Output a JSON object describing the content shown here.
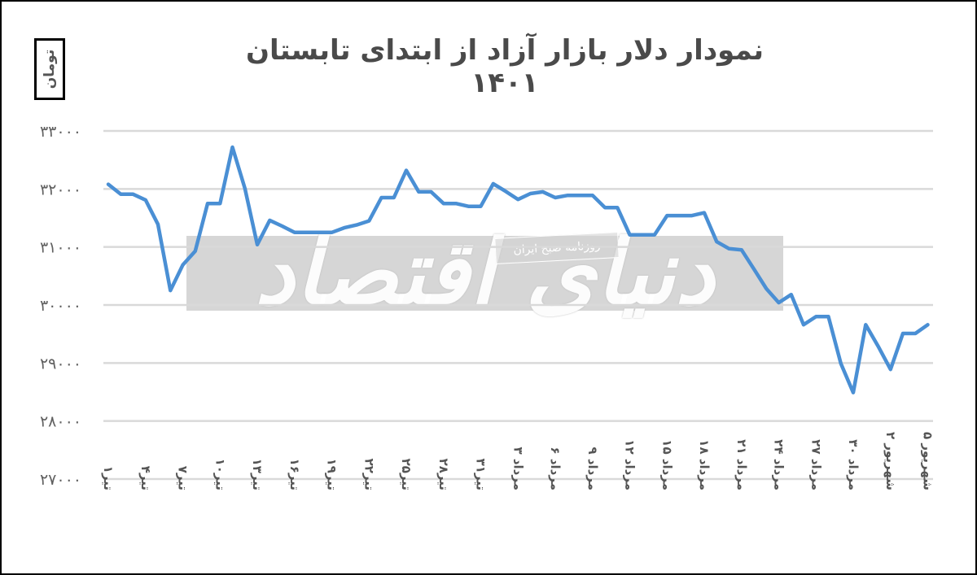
{
  "chart_data": {
    "type": "line",
    "title": "نمودار دلار بازار آزاد از ابتدای تابستان ۱۴۰۱",
    "ylabel": "تومان",
    "xlabel": "",
    "ylim": [
      27000,
      33000
    ],
    "yticks": [
      33000,
      32000,
      31000,
      30000,
      29000,
      28000,
      27000
    ],
    "ytick_labels": [
      "۳۳۰۰۰",
      "۳۲۰۰۰",
      "۳۱۰۰۰",
      "۳۰۰۰۰",
      "۲۹۰۰۰",
      "۲۸۰۰۰",
      "۲۷۰۰۰"
    ],
    "grid": true,
    "legend": null,
    "line_color": "#4a8fd4",
    "xtick_labels": [
      "تیر۱",
      "تیر۴",
      "تیر۷",
      "تیر۱۰",
      "تیر۱۳",
      "تیر۱۶",
      "تیر۱۹",
      "تیر۲۲",
      "تیر۲۵",
      "تیر۲۸",
      "تیر۳۱",
      "مرداد ۳",
      "مرداد ۶",
      "مرداد ۹",
      "مرداد ۱۲",
      "مرداد ۱۵",
      "مرداد ۱۸",
      "مرداد ۲۱",
      "مرداد ۲۴",
      "مرداد ۲۷",
      "مرداد ۳۰",
      "شهریور ۲",
      "شهریور ۵"
    ],
    "xtick_every": 3,
    "x": [
      "تیر ۱",
      "تیر ۲",
      "تیر ۳",
      "تیر ۴",
      "تیر ۵",
      "تیر ۶",
      "تیر ۷",
      "تیر ۸",
      "تیر ۹",
      "تیر ۱۰",
      "تیر ۱۱",
      "تیر ۱۲",
      "تیر ۱۳",
      "تیر ۱۴",
      "تیر ۱۵",
      "تیر ۱۶",
      "تیر ۱۷",
      "تیر ۱۸",
      "تیر ۱۹",
      "تیر ۲۰",
      "تیر ۲۱",
      "تیر ۲۲",
      "تیر ۲۳",
      "تیر ۲۴",
      "تیر ۲۵",
      "تیر ۲۶",
      "تیر ۲۷",
      "تیر ۲۸",
      "تیر ۲۹",
      "تیر ۳۰",
      "تیر ۳۱",
      "مرداد ۱",
      "مرداد ۲",
      "مرداد ۳",
      "مرداد ۴",
      "مرداد ۵",
      "مرداد ۶",
      "مرداد ۷",
      "مرداد ۸",
      "مرداد ۹",
      "مرداد ۱۰",
      "مرداد ۱۱",
      "مرداد ۱۲",
      "مرداد ۱۳",
      "مرداد ۱۴",
      "مرداد ۱۵",
      "مرداد ۱۶",
      "مرداد ۱۷",
      "مرداد ۱۸",
      "مرداد ۱۹",
      "مرداد ۲۰",
      "مرداد ۲۱",
      "مرداد ۲۲",
      "مرداد ۲۳",
      "مرداد ۲۴",
      "مرداد ۲۵",
      "مرداد ۲۶",
      "مرداد ۲۷",
      "مرداد ۲۸",
      "مرداد ۲۹",
      "مرداد ۳۰",
      "مرداد ۳۱",
      "شهریور ۱",
      "شهریور ۲",
      "شهریور ۳",
      "شهریور ۴",
      "شهریور ۵"
    ],
    "series": [
      {
        "name": "دلار بازار آزاد",
        "values": [
          32080,
          31910,
          31910,
          31810,
          31390,
          30250,
          30690,
          30930,
          31750,
          31750,
          32720,
          32010,
          31040,
          31460,
          31360,
          31250,
          31250,
          31250,
          31250,
          31330,
          31380,
          31450,
          31850,
          31850,
          32320,
          31950,
          31950,
          31750,
          31750,
          31700,
          31700,
          32090,
          31960,
          31820,
          31920,
          31950,
          31850,
          31890,
          31890,
          31890,
          31680,
          31680,
          31210,
          31210,
          31210,
          31540,
          31540,
          31540,
          31590,
          31090,
          30970,
          30950,
          30620,
          30280,
          30040,
          30180,
          29660,
          29800,
          29800,
          28990,
          28490,
          29660,
          29290,
          28890,
          29510,
          29510,
          29660
        ]
      }
    ]
  },
  "watermark": {
    "main": "دنیای اقتصاد",
    "sub": "روزنامه صبح ایران"
  }
}
